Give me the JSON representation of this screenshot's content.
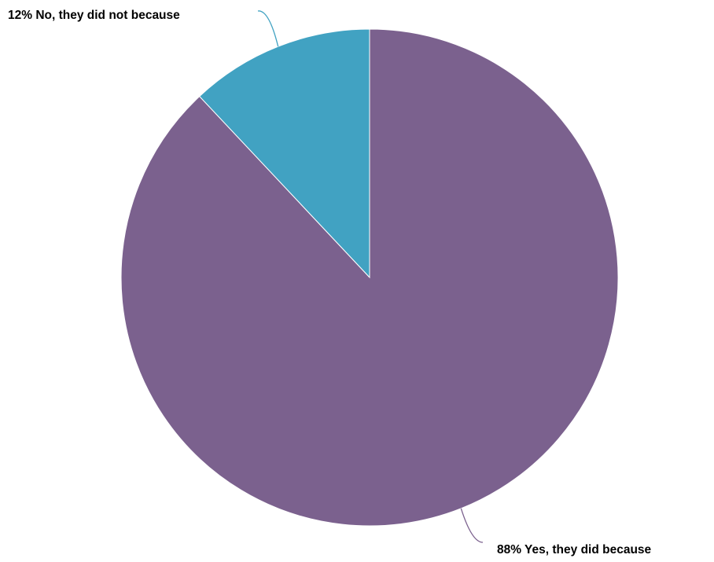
{
  "chart_data": {
    "type": "pie",
    "title": "",
    "slices": [
      {
        "label": "No, they did not because",
        "value": 12,
        "display": "12% No, they did not because",
        "color": "#41A2C2"
      },
      {
        "label": "Yes, they did because",
        "value": 88,
        "display": "88% Yes, they did because",
        "color": "#7B618E"
      }
    ],
    "legend": "none",
    "start_angle": "12 o'clock",
    "direction": "counterclockwise"
  }
}
